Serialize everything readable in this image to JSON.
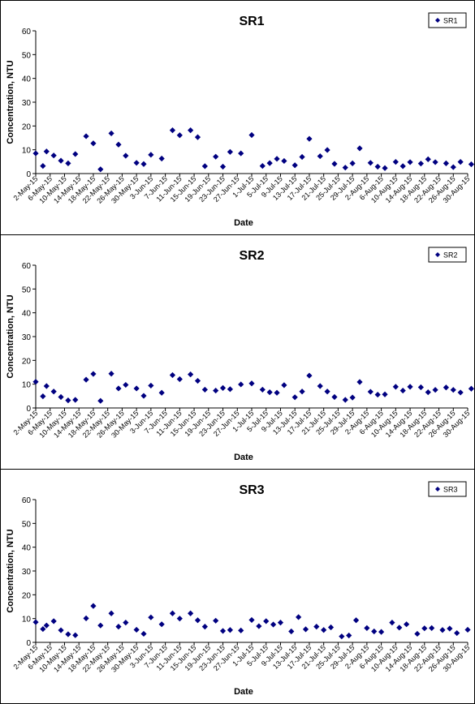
{
  "chart_data": [
    {
      "type": "scatter",
      "title": "SR1",
      "xlabel": "Date",
      "ylabel": "Concentration, NTU",
      "ylim": [
        0,
        60
      ],
      "yticks": [
        0,
        10,
        20,
        30,
        40,
        50,
        60
      ],
      "grid": false,
      "legend_position": "top-right",
      "xtick_labels": [
        "2-May-15",
        "6-May-15",
        "10-May-15",
        "14-May-15",
        "18-May-15",
        "22-May-15",
        "26-May-15",
        "30-May-15",
        "3-Jun-15",
        "7-Jun-15",
        "11-Jun-15",
        "15-Jun-15",
        "19-Jun-15",
        "23-Jun-15",
        "27-Jun-15",
        "1-Jul-15",
        "5-Jul-15",
        "9-Jul-15",
        "13-Jul-15",
        "17-Jul-15",
        "21-Jul-15",
        "25-Jul-15",
        "29-Jul-15",
        "2-Aug-15",
        "6-Aug-15",
        "10-Aug-15",
        "14-Aug-15",
        "18-Aug-15",
        "22-Aug-15",
        "26-Aug-15",
        "30-Aug-15"
      ],
      "series": [
        {
          "name": "SR1",
          "color": "#000080",
          "marker": "diamond",
          "points": [
            {
              "x": "2-May-15",
              "y": 8.5
            },
            {
              "x": "4-May-15",
              "y": 3.2
            },
            {
              "x": "5-May-15",
              "y": 9.3
            },
            {
              "x": "7-May-15",
              "y": 7.6
            },
            {
              "x": "9-May-15",
              "y": 5.4
            },
            {
              "x": "11-May-15",
              "y": 4.3
            },
            {
              "x": "13-May-15",
              "y": 8.2
            },
            {
              "x": "16-May-15",
              "y": 15.7
            },
            {
              "x": "18-May-15",
              "y": 12.7
            },
            {
              "x": "20-May-15",
              "y": 1.8
            },
            {
              "x": "23-May-15",
              "y": 16.9
            },
            {
              "x": "25-May-15",
              "y": 12.2
            },
            {
              "x": "27-May-15",
              "y": 7.5
            },
            {
              "x": "30-May-15",
              "y": 4.5
            },
            {
              "x": "1-Jun-15",
              "y": 4.0
            },
            {
              "x": "3-Jun-15",
              "y": 7.9
            },
            {
              "x": "6-Jun-15",
              "y": 6.3
            },
            {
              "x": "9-Jun-15",
              "y": 18.2
            },
            {
              "x": "11-Jun-15",
              "y": 16.1
            },
            {
              "x": "14-Jun-15",
              "y": 18.2
            },
            {
              "x": "16-Jun-15",
              "y": 15.3
            },
            {
              "x": "18-Jun-15",
              "y": 3.1
            },
            {
              "x": "21-Jun-15",
              "y": 7.1
            },
            {
              "x": "23-Jun-15",
              "y": 2.9
            },
            {
              "x": "25-Jun-15",
              "y": 9.1
            },
            {
              "x": "28-Jun-15",
              "y": 8.5
            },
            {
              "x": "1-Jul-15",
              "y": 16.2
            },
            {
              "x": "4-Jul-15",
              "y": 3.2
            },
            {
              "x": "6-Jul-15",
              "y": 4.4
            },
            {
              "x": "8-Jul-15",
              "y": 6.2
            },
            {
              "x": "10-Jul-15",
              "y": 5.3
            },
            {
              "x": "13-Jul-15",
              "y": 3.5
            },
            {
              "x": "15-Jul-15",
              "y": 7.0
            },
            {
              "x": "17-Jul-15",
              "y": 14.6
            },
            {
              "x": "20-Jul-15",
              "y": 7.3
            },
            {
              "x": "22-Jul-15",
              "y": 9.9
            },
            {
              "x": "24-Jul-15",
              "y": 4.1
            },
            {
              "x": "27-Jul-15",
              "y": 2.5
            },
            {
              "x": "29-Jul-15",
              "y": 4.3
            },
            {
              "x": "31-Jul-15",
              "y": 10.6
            },
            {
              "x": "3-Aug-15",
              "y": 4.5
            },
            {
              "x": "5-Aug-15",
              "y": 2.9
            },
            {
              "x": "7-Aug-15",
              "y": 2.3
            },
            {
              "x": "10-Aug-15",
              "y": 4.9
            },
            {
              "x": "12-Aug-15",
              "y": 3.1
            },
            {
              "x": "14-Aug-15",
              "y": 4.8
            },
            {
              "x": "17-Aug-15",
              "y": 4.2
            },
            {
              "x": "19-Aug-15",
              "y": 6.0
            },
            {
              "x": "21-Aug-15",
              "y": 4.8
            },
            {
              "x": "24-Aug-15",
              "y": 4.3
            },
            {
              "x": "26-Aug-15",
              "y": 2.7
            },
            {
              "x": "28-Aug-15",
              "y": 4.9
            },
            {
              "x": "31-Aug-15",
              "y": 3.9
            }
          ]
        }
      ]
    },
    {
      "type": "scatter",
      "title": "SR2",
      "xlabel": "Date",
      "ylabel": "Concentration, NTU",
      "ylim": [
        0,
        60
      ],
      "yticks": [
        0,
        10,
        20,
        30,
        40,
        50,
        60
      ],
      "grid": false,
      "legend_position": "top-right",
      "xtick_labels": [
        "2-May-15",
        "6-May-15",
        "10-May-15",
        "14-May-15",
        "18-May-15",
        "22-May-15",
        "26-May-15",
        "30-May-15",
        "3-Jun-15",
        "7-Jun-15",
        "11-Jun-15",
        "15-Jun-15",
        "19-Jun-15",
        "23-Jun-15",
        "27-Jun-15",
        "1-Jul-15",
        "5-Jul-15",
        "9-Jul-15",
        "13-Jul-15",
        "17-Jul-15",
        "21-Jul-15",
        "25-Jul-15",
        "29-Jul-15",
        "2-Aug-15",
        "6-Aug-15",
        "10-Aug-15",
        "14-Aug-15",
        "18-Aug-15",
        "22-Aug-15",
        "26-Aug-15",
        "30-Aug-15"
      ],
      "series": [
        {
          "name": "SR2",
          "color": "#000080",
          "marker": "diamond",
          "points": [
            {
              "x": "2-May-15",
              "y": 11.0
            },
            {
              "x": "4-May-15",
              "y": 4.9
            },
            {
              "x": "5-May-15",
              "y": 9.2
            },
            {
              "x": "7-May-15",
              "y": 6.9
            },
            {
              "x": "9-May-15",
              "y": 4.6
            },
            {
              "x": "11-May-15",
              "y": 3.2
            },
            {
              "x": "13-May-15",
              "y": 3.4
            },
            {
              "x": "16-May-15",
              "y": 11.9
            },
            {
              "x": "18-May-15",
              "y": 14.3
            },
            {
              "x": "20-May-15",
              "y": 3.0
            },
            {
              "x": "23-May-15",
              "y": 14.4
            },
            {
              "x": "25-May-15",
              "y": 8.2
            },
            {
              "x": "27-May-15",
              "y": 9.7
            },
            {
              "x": "30-May-15",
              "y": 8.2
            },
            {
              "x": "1-Jun-15",
              "y": 5.1
            },
            {
              "x": "3-Jun-15",
              "y": 9.4
            },
            {
              "x": "6-Jun-15",
              "y": 6.4
            },
            {
              "x": "9-Jun-15",
              "y": 13.8
            },
            {
              "x": "11-Jun-15",
              "y": 12.1
            },
            {
              "x": "14-Jun-15",
              "y": 14.1
            },
            {
              "x": "16-Jun-15",
              "y": 11.4
            },
            {
              "x": "18-Jun-15",
              "y": 7.7
            },
            {
              "x": "21-Jun-15",
              "y": 7.3
            },
            {
              "x": "23-Jun-15",
              "y": 8.4
            },
            {
              "x": "25-Jun-15",
              "y": 7.9
            },
            {
              "x": "28-Jun-15",
              "y": 9.9
            },
            {
              "x": "1-Jul-15",
              "y": 10.3
            },
            {
              "x": "4-Jul-15",
              "y": 7.7
            },
            {
              "x": "6-Jul-15",
              "y": 6.6
            },
            {
              "x": "8-Jul-15",
              "y": 6.4
            },
            {
              "x": "10-Jul-15",
              "y": 9.6
            },
            {
              "x": "13-Jul-15",
              "y": 4.5
            },
            {
              "x": "15-Jul-15",
              "y": 6.9
            },
            {
              "x": "17-Jul-15",
              "y": 13.6
            },
            {
              "x": "20-Jul-15",
              "y": 9.2
            },
            {
              "x": "22-Jul-15",
              "y": 6.9
            },
            {
              "x": "24-Jul-15",
              "y": 4.6
            },
            {
              "x": "27-Jul-15",
              "y": 3.4
            },
            {
              "x": "29-Jul-15",
              "y": 4.4
            },
            {
              "x": "31-Jul-15",
              "y": 10.9
            },
            {
              "x": "3-Aug-15",
              "y": 6.8
            },
            {
              "x": "5-Aug-15",
              "y": 5.6
            },
            {
              "x": "7-Aug-15",
              "y": 5.7
            },
            {
              "x": "10-Aug-15",
              "y": 8.9
            },
            {
              "x": "12-Aug-15",
              "y": 7.3
            },
            {
              "x": "14-Aug-15",
              "y": 8.9
            },
            {
              "x": "17-Aug-15",
              "y": 8.7
            },
            {
              "x": "19-Aug-15",
              "y": 6.6
            },
            {
              "x": "21-Aug-15",
              "y": 7.6
            },
            {
              "x": "24-Aug-15",
              "y": 8.6
            },
            {
              "x": "26-Aug-15",
              "y": 7.6
            },
            {
              "x": "28-Aug-15",
              "y": 6.5
            },
            {
              "x": "31-Aug-15",
              "y": 8.1
            }
          ]
        }
      ]
    },
    {
      "type": "scatter",
      "title": "SR3",
      "xlabel": "Date",
      "ylabel": "Concentration, NTU",
      "ylim": [
        0,
        60
      ],
      "yticks": [
        0,
        10,
        20,
        30,
        40,
        50,
        60
      ],
      "grid": false,
      "legend_position": "top-right",
      "xtick_labels": [
        "2-May-15",
        "6-May-15",
        "10-May-15",
        "14-May-15",
        "18-May-15",
        "22-May-15",
        "26-May-15",
        "30-May-15",
        "3-Jun-15",
        "7-Jun-15",
        "11-Jun-15",
        "15-Jun-15",
        "19-Jun-15",
        "23-Jun-15",
        "27-Jun-15",
        "1-Jul-15",
        "5-Jul-15",
        "9-Jul-15",
        "13-Jul-15",
        "17-Jul-15",
        "21-Jul-15",
        "25-Jul-15",
        "29-Jul-15",
        "2-Aug-15",
        "6-Aug-15",
        "10-Aug-15",
        "14-Aug-15",
        "18-Aug-15",
        "22-Aug-15",
        "26-Aug-15",
        "30-Aug-15"
      ],
      "series": [
        {
          "name": "SR3",
          "color": "#000080",
          "marker": "diamond",
          "points": [
            {
              "x": "2-May-15",
              "y": 8.5
            },
            {
              "x": "4-May-15",
              "y": 5.6
            },
            {
              "x": "5-May-15",
              "y": 7.1
            },
            {
              "x": "7-May-15",
              "y": 8.9
            },
            {
              "x": "9-May-15",
              "y": 5.1
            },
            {
              "x": "11-May-15",
              "y": 3.4
            },
            {
              "x": "13-May-15",
              "y": 3.0
            },
            {
              "x": "16-May-15",
              "y": 10.1
            },
            {
              "x": "18-May-15",
              "y": 15.3
            },
            {
              "x": "20-May-15",
              "y": 7.1
            },
            {
              "x": "23-May-15",
              "y": 12.2
            },
            {
              "x": "25-May-15",
              "y": 6.6
            },
            {
              "x": "27-May-15",
              "y": 8.3
            },
            {
              "x": "30-May-15",
              "y": 5.3
            },
            {
              "x": "1-Jun-15",
              "y": 3.6
            },
            {
              "x": "3-Jun-15",
              "y": 10.5
            },
            {
              "x": "6-Jun-15",
              "y": 7.6
            },
            {
              "x": "9-Jun-15",
              "y": 12.2
            },
            {
              "x": "11-Jun-15",
              "y": 10.0
            },
            {
              "x": "14-Jun-15",
              "y": 12.2
            },
            {
              "x": "16-Jun-15",
              "y": 9.3
            },
            {
              "x": "18-Jun-15",
              "y": 6.6
            },
            {
              "x": "21-Jun-15",
              "y": 9.1
            },
            {
              "x": "23-Jun-15",
              "y": 4.8
            },
            {
              "x": "25-Jun-15",
              "y": 5.2
            },
            {
              "x": "28-Jun-15",
              "y": 5.0
            },
            {
              "x": "1-Jul-15",
              "y": 9.4
            },
            {
              "x": "3-Jul-15",
              "y": 6.8
            },
            {
              "x": "5-Jul-15",
              "y": 8.9
            },
            {
              "x": "7-Jul-15",
              "y": 7.5
            },
            {
              "x": "9-Jul-15",
              "y": 8.3
            },
            {
              "x": "12-Jul-15",
              "y": 4.6
            },
            {
              "x": "14-Jul-15",
              "y": 10.6
            },
            {
              "x": "16-Jul-15",
              "y": 5.5
            },
            {
              "x": "19-Jul-15",
              "y": 6.6
            },
            {
              "x": "21-Jul-15",
              "y": 5.2
            },
            {
              "x": "23-Jul-15",
              "y": 6.3
            },
            {
              "x": "26-Jul-15",
              "y": 2.5
            },
            {
              "x": "28-Jul-15",
              "y": 2.9
            },
            {
              "x": "30-Jul-15",
              "y": 9.3
            },
            {
              "x": "2-Aug-15",
              "y": 6.0
            },
            {
              "x": "4-Aug-15",
              "y": 4.6
            },
            {
              "x": "6-Aug-15",
              "y": 4.4
            },
            {
              "x": "9-Aug-15",
              "y": 8.3
            },
            {
              "x": "11-Aug-15",
              "y": 6.2
            },
            {
              "x": "13-Aug-15",
              "y": 7.6
            },
            {
              "x": "16-Aug-15",
              "y": 3.6
            },
            {
              "x": "18-Aug-15",
              "y": 5.9
            },
            {
              "x": "20-Aug-15",
              "y": 6.0
            },
            {
              "x": "23-Aug-15",
              "y": 5.2
            },
            {
              "x": "25-Aug-15",
              "y": 5.8
            },
            {
              "x": "27-Aug-15",
              "y": 3.9
            },
            {
              "x": "30-Aug-15",
              "y": 5.3
            }
          ]
        }
      ]
    }
  ]
}
